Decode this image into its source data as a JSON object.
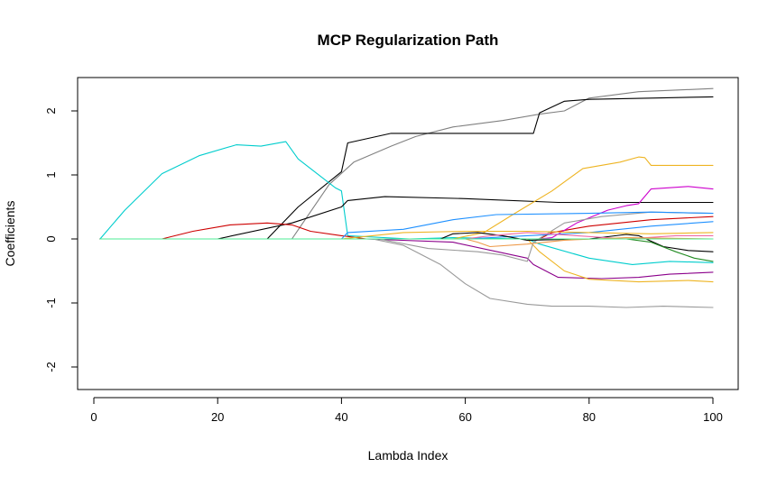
{
  "chart_data": {
    "type": "line",
    "title": "MCP Regularization Path",
    "xlabel": "Lambda Index",
    "ylabel": "Coefficients",
    "xlim": [
      1,
      100
    ],
    "ylim": [
      -2.2,
      2.3
    ],
    "xticks": [
      0,
      20,
      40,
      60,
      80,
      100
    ],
    "yticks": [
      -2,
      -1,
      0,
      1,
      2
    ],
    "grid": false,
    "legend": "none",
    "series": [
      {
        "color": "#808080",
        "points": [
          [
            1,
            0
          ],
          [
            32,
            0
          ],
          [
            38,
            0.85
          ],
          [
            42,
            1.2
          ],
          [
            48,
            1.45
          ],
          [
            52,
            1.6
          ],
          [
            58,
            1.75
          ],
          [
            66,
            1.85
          ],
          [
            72,
            1.95
          ],
          [
            76,
            2.0
          ],
          [
            80,
            2.2
          ],
          [
            88,
            2.3
          ],
          [
            100,
            2.35
          ]
        ]
      },
      {
        "color": "#000000",
        "points": [
          [
            1,
            0
          ],
          [
            28,
            0
          ],
          [
            33,
            0.5
          ],
          [
            40,
            1.05
          ],
          [
            41,
            1.5
          ],
          [
            48,
            1.65
          ],
          [
            71,
            1.65
          ],
          [
            72,
            1.97
          ],
          [
            76,
            2.15
          ],
          [
            80,
            2.18
          ],
          [
            90,
            2.2
          ],
          [
            100,
            2.22
          ]
        ]
      },
      {
        "color": "#00CDCD",
        "points": [
          [
            1,
            0
          ],
          [
            5,
            0.45
          ],
          [
            11,
            1.02
          ],
          [
            17,
            1.3
          ],
          [
            23,
            1.47
          ],
          [
            27,
            1.45
          ],
          [
            31,
            1.52
          ],
          [
            33,
            1.25
          ],
          [
            39,
            0.8
          ],
          [
            40,
            0.75
          ],
          [
            41,
            0.05
          ],
          [
            51,
            0.0
          ],
          [
            58,
            0.02
          ],
          [
            70,
            0.0
          ],
          [
            72,
            -0.08
          ],
          [
            80,
            -0.3
          ],
          [
            87,
            -0.4
          ],
          [
            93,
            -0.35
          ],
          [
            100,
            -0.37
          ]
        ]
      },
      {
        "color": "#000000",
        "points": [
          [
            1,
            0
          ],
          [
            20,
            0
          ],
          [
            32,
            0.25
          ],
          [
            40,
            0.5
          ],
          [
            41,
            0.6
          ],
          [
            47,
            0.66
          ],
          [
            60,
            0.63
          ],
          [
            75,
            0.57
          ],
          [
            90,
            0.57
          ],
          [
            100,
            0.57
          ]
        ]
      },
      {
        "color": "#CD0000",
        "points": [
          [
            1,
            0
          ],
          [
            11,
            0
          ],
          [
            16,
            0.12
          ],
          [
            22,
            0.22
          ],
          [
            28,
            0.25
          ],
          [
            32,
            0.22
          ],
          [
            35,
            0.12
          ],
          [
            40,
            0.05
          ],
          [
            44,
            0.0
          ],
          [
            60,
            0.0
          ],
          [
            72,
            0.0
          ],
          [
            74,
            0.1
          ],
          [
            80,
            0.2
          ],
          [
            90,
            0.3
          ],
          [
            100,
            0.35
          ]
        ]
      },
      {
        "color": "#EEB422",
        "points": [
          [
            1,
            0
          ],
          [
            45,
            0
          ],
          [
            58,
            0.0
          ],
          [
            63,
            0.1
          ],
          [
            68,
            0.4
          ],
          [
            74,
            0.75
          ],
          [
            79,
            1.1
          ],
          [
            85,
            1.2
          ],
          [
            88,
            1.28
          ],
          [
            89,
            1.27
          ],
          [
            90,
            1.15
          ],
          [
            100,
            1.15
          ]
        ]
      },
      {
        "color": "#8B008B",
        "points": [
          [
            1,
            0
          ],
          [
            44,
            0
          ],
          [
            58,
            -0.05
          ],
          [
            70,
            -0.3
          ],
          [
            71,
            -0.4
          ],
          [
            75,
            -0.6
          ],
          [
            82,
            -0.62
          ],
          [
            88,
            -0.6
          ],
          [
            93,
            -0.55
          ],
          [
            100,
            -0.52
          ]
        ]
      },
      {
        "color": "#CD00CD",
        "points": [
          [
            1,
            0
          ],
          [
            72,
            0
          ],
          [
            74,
            0.02
          ],
          [
            78,
            0.25
          ],
          [
            83,
            0.45
          ],
          [
            86,
            0.52
          ],
          [
            88,
            0.55
          ],
          [
            90,
            0.78
          ],
          [
            96,
            0.82
          ],
          [
            100,
            0.78
          ]
        ]
      },
      {
        "color": "#EEB422",
        "points": [
          [
            1,
            0
          ],
          [
            70,
            0
          ],
          [
            72,
            -0.2
          ],
          [
            76,
            -0.5
          ],
          [
            80,
            -0.63
          ],
          [
            88,
            -0.67
          ],
          [
            96,
            -0.65
          ],
          [
            100,
            -0.67
          ]
        ]
      },
      {
        "color": "#999999",
        "points": [
          [
            1,
            0
          ],
          [
            45,
            0
          ],
          [
            50,
            -0.1
          ],
          [
            56,
            -0.4
          ],
          [
            60,
            -0.7
          ],
          [
            64,
            -0.93
          ],
          [
            70,
            -1.02
          ],
          [
            74,
            -1.05
          ],
          [
            80,
            -1.05
          ],
          [
            86,
            -1.07
          ],
          [
            92,
            -1.05
          ],
          [
            100,
            -1.07
          ]
        ]
      },
      {
        "color": "#999999",
        "points": [
          [
            1,
            0
          ],
          [
            46,
            0
          ],
          [
            54,
            -0.15
          ],
          [
            62,
            -0.2
          ],
          [
            66,
            -0.25
          ],
          [
            70,
            -0.35
          ],
          [
            71,
            -0.05
          ],
          [
            76,
            0.25
          ],
          [
            82,
            0.35
          ],
          [
            90,
            0.42
          ],
          [
            100,
            0.4
          ]
        ]
      },
      {
        "color": "#1E90FF",
        "points": [
          [
            1,
            0
          ],
          [
            40,
            0
          ],
          [
            41,
            0.1
          ],
          [
            50,
            0.15
          ],
          [
            58,
            0.3
          ],
          [
            65,
            0.38
          ],
          [
            80,
            0.4
          ],
          [
            90,
            0.42
          ],
          [
            100,
            0.4
          ]
        ]
      },
      {
        "color": "#1E90FF",
        "points": [
          [
            1,
            0
          ],
          [
            60,
            0
          ],
          [
            70,
            0.05
          ],
          [
            80,
            0.1
          ],
          [
            90,
            0.2
          ],
          [
            100,
            0.27
          ]
        ]
      },
      {
        "color": "#000000",
        "points": [
          [
            1,
            0
          ],
          [
            56,
            0
          ],
          [
            58,
            0.08
          ],
          [
            62,
            0.1
          ],
          [
            66,
            0.05
          ],
          [
            70,
            -0.02
          ],
          [
            80,
            0.0
          ],
          [
            86,
            0.07
          ],
          [
            88,
            0.05
          ],
          [
            92,
            -0.12
          ],
          [
            96,
            -0.18
          ],
          [
            100,
            -0.2
          ]
        ]
      },
      {
        "color": "#228B22",
        "points": [
          [
            1,
            0
          ],
          [
            86,
            0
          ],
          [
            90,
            -0.05
          ],
          [
            94,
            -0.2
          ],
          [
            97,
            -0.3
          ],
          [
            100,
            -0.35
          ]
        ]
      },
      {
        "color": "#EEB422",
        "points": [
          [
            1,
            0
          ],
          [
            40,
            0
          ],
          [
            50,
            0.1
          ],
          [
            60,
            0.12
          ],
          [
            70,
            0.12
          ],
          [
            80,
            0.1
          ],
          [
            90,
            0.08
          ],
          [
            100,
            0.1
          ]
        ]
      },
      {
        "color": "#EE6AA7",
        "points": [
          [
            1,
            0
          ],
          [
            60,
            0
          ],
          [
            64,
            0.05
          ],
          [
            70,
            0.1
          ],
          [
            78,
            0.05
          ],
          [
            86,
            0.0
          ],
          [
            94,
            0.05
          ],
          [
            100,
            0.05
          ]
        ]
      },
      {
        "color": "#EE9A49",
        "points": [
          [
            1,
            0
          ],
          [
            60,
            0
          ],
          [
            62,
            -0.05
          ],
          [
            64,
            -0.12
          ],
          [
            70,
            -0.08
          ],
          [
            76,
            -0.02
          ],
          [
            86,
            0.02
          ],
          [
            100,
            0.0
          ]
        ]
      },
      {
        "color": "#4EEE94",
        "points": [
          [
            1,
            0
          ],
          [
            100,
            0
          ]
        ]
      }
    ]
  }
}
